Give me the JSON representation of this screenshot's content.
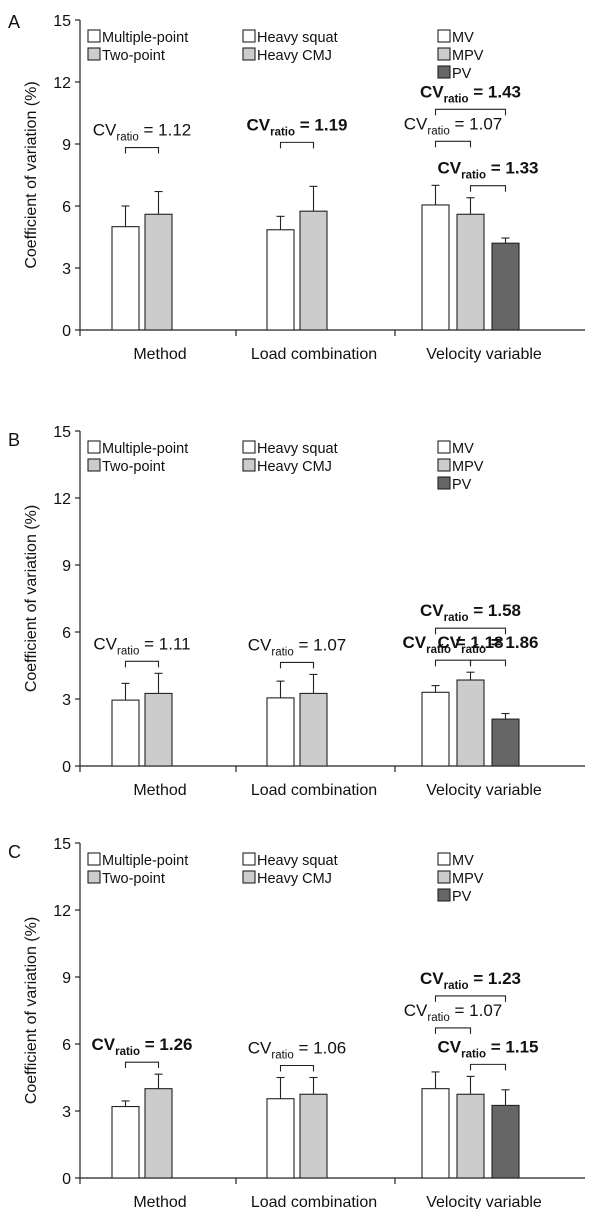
{
  "chart_data": [
    {
      "type": "bar",
      "panel": "A",
      "ylabel": "Coefficient of variation (%)",
      "ylim": [
        0,
        15
      ],
      "yticks": [
        0,
        3,
        6,
        9,
        12,
        15
      ],
      "grid": false,
      "groups": [
        {
          "name": "Method",
          "bars": [
            {
              "label": "Multiple-point",
              "value": 5.0,
              "error": 1.0,
              "color": "#ffffff"
            },
            {
              "label": "Two-point",
              "value": 5.6,
              "error": 1.1,
              "color": "#cccccc"
            }
          ]
        },
        {
          "name": "Load combination",
          "bars": [
            {
              "label": "Heavy squat",
              "value": 4.85,
              "error": 0.65,
              "color": "#ffffff"
            },
            {
              "label": "Heavy CMJ",
              "value": 5.75,
              "error": 1.2,
              "color": "#cccccc"
            }
          ]
        },
        {
          "name": "Velocity variable",
          "bars": [
            {
              "label": "MV",
              "value": 6.05,
              "error": 0.95,
              "color": "#ffffff"
            },
            {
              "label": "MPV",
              "value": 5.6,
              "error": 0.8,
              "color": "#cccccc"
            },
            {
              "label": "PV",
              "value": 4.2,
              "error": 0.25,
              "color": "#666666"
            }
          ]
        }
      ],
      "annotations": [
        {
          "main": "CV",
          "sub": "ratio",
          "value": "1.12",
          "bold": false,
          "from": 0,
          "to": 1,
          "level": 1
        },
        {
          "main": "CV",
          "sub": "ratio",
          "value": "1.19",
          "bold": true,
          "from": 3,
          "to": 4,
          "level": 1
        },
        {
          "main": "CV",
          "sub": "ratio",
          "value": "1.07",
          "bold": false,
          "from": 6,
          "to": 7,
          "level": 1
        },
        {
          "main": "CV",
          "sub": "ratio",
          "value": "1.33",
          "bold": true,
          "from": 7,
          "to": 8,
          "level": 0
        },
        {
          "main": "CV",
          "sub": "ratio",
          "value": "1.43",
          "bold": true,
          "from": 6,
          "to": 8,
          "level": 2
        }
      ]
    },
    {
      "type": "bar",
      "panel": "B",
      "ylabel": "Coefficient of variation (%)",
      "ylim": [
        0,
        15
      ],
      "yticks": [
        0,
        3,
        6,
        9,
        12,
        15
      ],
      "grid": false,
      "groups": [
        {
          "name": "Method",
          "bars": [
            {
              "label": "Multiple-point",
              "value": 2.95,
              "error": 0.75,
              "color": "#ffffff"
            },
            {
              "label": "Two-point",
              "value": 3.25,
              "error": 0.9,
              "color": "#cccccc"
            }
          ]
        },
        {
          "name": "Load combination",
          "bars": [
            {
              "label": "Heavy squat",
              "value": 3.05,
              "error": 0.75,
              "color": "#ffffff"
            },
            {
              "label": "Heavy CMJ",
              "value": 3.25,
              "error": 0.85,
              "color": "#cccccc"
            }
          ]
        },
        {
          "name": "Velocity variable",
          "bars": [
            {
              "label": "MV",
              "value": 3.3,
              "error": 0.3,
              "color": "#ffffff"
            },
            {
              "label": "MPV",
              "value": 3.85,
              "error": 0.35,
              "color": "#cccccc"
            },
            {
              "label": "PV",
              "value": 2.1,
              "error": 0.25,
              "color": "#666666"
            }
          ]
        }
      ],
      "annotations": [
        {
          "main": "CV",
          "sub": "ratio",
          "value": "1.11",
          "bold": false,
          "from": 0,
          "to": 1,
          "level": 0
        },
        {
          "main": "CV",
          "sub": "ratio",
          "value": "1.07",
          "bold": false,
          "from": 3,
          "to": 4,
          "level": 0
        },
        {
          "main": "CV",
          "sub": "ratio",
          "value": "1.18",
          "bold": true,
          "from": 6,
          "to": 7,
          "level": 0
        },
        {
          "main": "CV",
          "sub": "ratio",
          "value": "1.86",
          "bold": true,
          "from": 7,
          "to": 8,
          "level": 0
        },
        {
          "main": "CV",
          "sub": "ratio",
          "value": "1.58",
          "bold": true,
          "from": 6,
          "to": 8,
          "level": 1
        }
      ]
    },
    {
      "type": "bar",
      "panel": "C",
      "ylabel": "Coefficient of variation (%)",
      "ylim": [
        0,
        15
      ],
      "yticks": [
        0,
        3,
        6,
        9,
        12,
        15
      ],
      "grid": false,
      "groups": [
        {
          "name": "Method",
          "bars": [
            {
              "label": "Multiple-point",
              "value": 3.2,
              "error": 0.25,
              "color": "#ffffff"
            },
            {
              "label": "Two-point",
              "value": 4.0,
              "error": 0.65,
              "color": "#cccccc"
            }
          ]
        },
        {
          "name": "Load combination",
          "bars": [
            {
              "label": "Heavy squat",
              "value": 3.55,
              "error": 0.95,
              "color": "#ffffff"
            },
            {
              "label": "Heavy CMJ",
              "value": 3.75,
              "error": 0.75,
              "color": "#cccccc"
            }
          ]
        },
        {
          "name": "Velocity variable",
          "bars": [
            {
              "label": "MV",
              "value": 4.0,
              "error": 0.75,
              "color": "#ffffff"
            },
            {
              "label": "MPV",
              "value": 3.75,
              "error": 0.8,
              "color": "#cccccc"
            },
            {
              "label": "PV",
              "value": 3.25,
              "error": 0.7,
              "color": "#666666"
            }
          ]
        }
      ],
      "annotations": [
        {
          "main": "CV",
          "sub": "ratio",
          "value": "1.26",
          "bold": true,
          "from": 0,
          "to": 1,
          "level": 0
        },
        {
          "main": "CV",
          "sub": "ratio",
          "value": "1.06",
          "bold": false,
          "from": 3,
          "to": 4,
          "level": 0
        },
        {
          "main": "CV",
          "sub": "ratio",
          "value": "1.07",
          "bold": false,
          "from": 6,
          "to": 7,
          "level": 1
        },
        {
          "main": "CV",
          "sub": "ratio",
          "value": "1.15",
          "bold": true,
          "from": 7,
          "to": 8,
          "level": 0
        },
        {
          "main": "CV",
          "sub": "ratio",
          "value": "1.23",
          "bold": true,
          "from": 6,
          "to": 8,
          "level": 2
        }
      ]
    }
  ]
}
